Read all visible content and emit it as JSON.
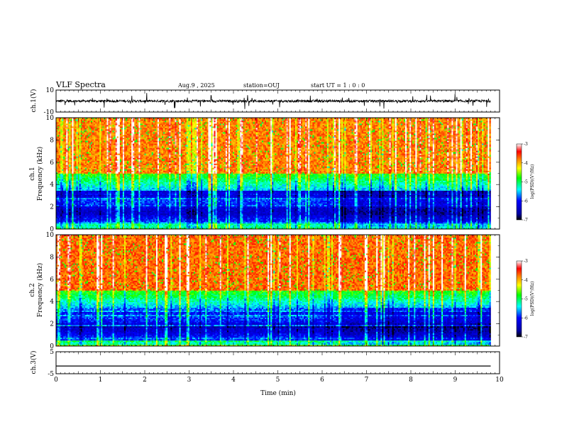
{
  "header": {
    "title": "VLF Spectra",
    "date": "Aug.9  , 2025",
    "station": "station=OUJ",
    "start": "start  UT =   1 : 0  : 0"
  },
  "chart_data": {
    "type": "heatmap",
    "x_axis": {
      "label": "Time  (min)",
      "range": [
        0,
        10
      ],
      "ticks": [
        "0",
        "1",
        "2",
        "3",
        "4",
        "5",
        "6",
        "7",
        "8",
        "9",
        "10"
      ]
    },
    "panels": [
      {
        "id": "ch1-waveform",
        "type": "line",
        "ylabel": "ch.1(V)",
        "ylim": [
          -10,
          10
        ],
        "tick_labels": [
          "10",
          "-10"
        ],
        "baseline": 0,
        "data_end_min": 9.8
      },
      {
        "id": "ch1-spectrogram",
        "type": "heatmap",
        "ylabel_line1": "ch.1",
        "ylabel_line2": "Frequency  (kHz)",
        "ylim": [
          0,
          10
        ],
        "tick_labels": [
          "0",
          "2",
          "4",
          "6",
          "8",
          "10"
        ],
        "data_end_min": 9.8,
        "colorbar": {
          "label": "log(PSD)(V²/Hz)",
          "range": [
            -7,
            -3
          ],
          "tick_labels": [
            "-3",
            "-4",
            "-5",
            "-6",
            "-7"
          ]
        }
      },
      {
        "id": "ch2-spectrogram",
        "type": "heatmap",
        "ylabel_line1": "ch.2",
        "ylabel_line2": "Frequency  (kHz)",
        "ylim": [
          0,
          10
        ],
        "tick_labels": [
          "0",
          "2",
          "4",
          "6",
          "8",
          "10"
        ],
        "data_end_min": 9.8,
        "colorbar": {
          "label": "log(PSD)(V²/Hz)",
          "range": [
            -7,
            -3
          ],
          "tick_labels": [
            "-3",
            "-4",
            "-5",
            "-6",
            "-7"
          ]
        }
      },
      {
        "id": "ch3-waveform",
        "type": "line",
        "ylabel": "ch.3(V)",
        "ylim": [
          -5,
          5
        ],
        "tick_labels": [
          "5",
          "-5"
        ],
        "baseline": -1.5,
        "data_end_min": 9.8
      }
    ],
    "colormap": [
      "#000080",
      "#0000ff",
      "#00ffff",
      "#00ff00",
      "#ffff00",
      "#ff8000",
      "#ff0000",
      "#ffffff"
    ]
  }
}
